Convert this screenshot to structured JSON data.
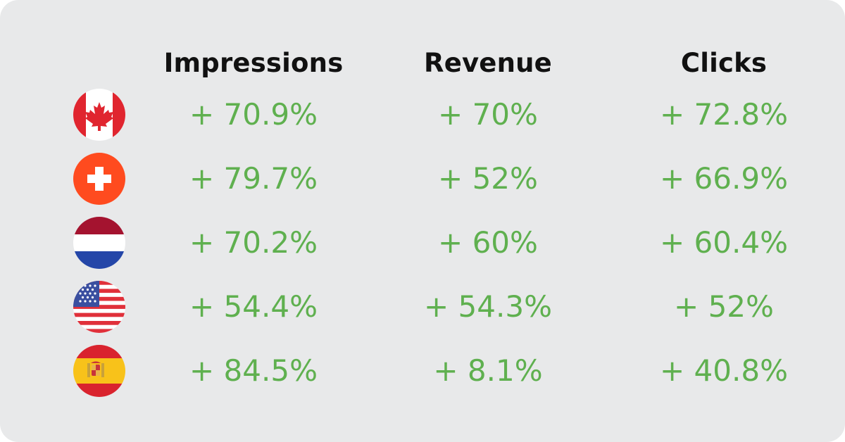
{
  "columns": {
    "impressions": "Impressions",
    "revenue": "Revenue",
    "clicks": "Clicks"
  },
  "rows": [
    {
      "flag": "canada-flag-icon",
      "impressions": "+ 70.9%",
      "revenue": "+ 70%",
      "clicks": "+ 72.8%"
    },
    {
      "flag": "switzerland-flag-icon",
      "impressions": "+ 79.7%",
      "revenue": "+ 52%",
      "clicks": "+ 66.9%"
    },
    {
      "flag": "netherlands-flag-icon",
      "impressions": "+ 70.2%",
      "revenue": "+ 60%",
      "clicks": "+ 60.4%"
    },
    {
      "flag": "usa-flag-icon",
      "impressions": "+ 54.4%",
      "revenue": "+ 54.3%",
      "clicks": "+ 52%"
    },
    {
      "flag": "spain-flag-icon",
      "impressions": "+ 84.5%",
      "revenue": "+ 8.1%",
      "clicks": "+ 40.8%"
    }
  ],
  "colors": {
    "background": "#e8e9ea",
    "positive": "#5fb04f",
    "header_text": "#111111"
  }
}
